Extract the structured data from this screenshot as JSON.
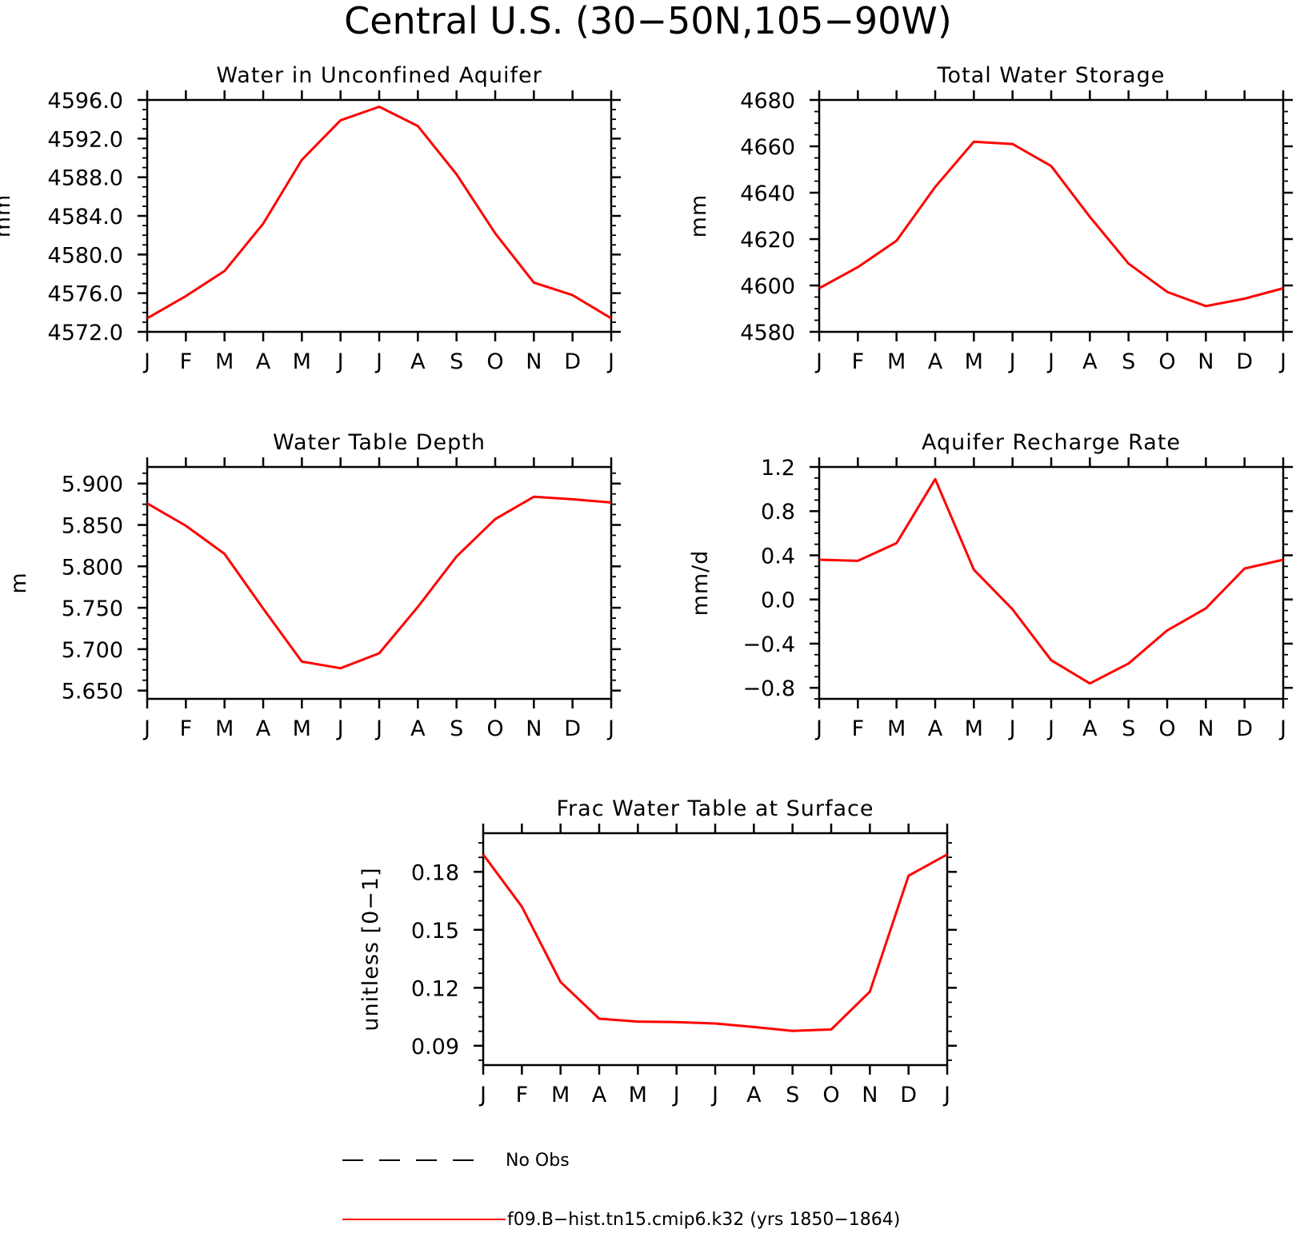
{
  "figure": {
    "title": "Central U.S. (30-50N,105-90W)"
  },
  "colors": {
    "model": "#ff0000",
    "obs": "#000000",
    "axes": "#000000"
  },
  "legend": {
    "entries": [
      {
        "label": "No Obs",
        "style": "dashed",
        "color": "#000000"
      },
      {
        "label": "f09.B-hist.tn15.cmip6.k32 (yrs 1850-1864)",
        "style": "solid",
        "color": "#ff0000"
      }
    ]
  },
  "chart_data": [
    {
      "type": "line",
      "title": "Water in Unconfined Aquifer",
      "ylabel": "mm",
      "x": [
        "J",
        "F",
        "M",
        "A",
        "M",
        "J",
        "J",
        "A",
        "S",
        "O",
        "N",
        "D",
        "J"
      ],
      "ylim": [
        4572,
        4596
      ],
      "yticks": [
        "4572.0",
        "4576.0",
        "4580.0",
        "4584.0",
        "4588.0",
        "4592.0",
        "4596.0"
      ],
      "series": [
        {
          "values": [
            4573.4,
            4575.7,
            4578.3,
            4583.2,
            4589.8,
            4593.9,
            4595.3,
            4593.3,
            4588.3,
            4582.2,
            4577.1,
            4575.8,
            4573.4
          ]
        }
      ]
    },
    {
      "type": "line",
      "title": "Total Water Storage",
      "ylabel": "mm",
      "x": [
        "J",
        "F",
        "M",
        "A",
        "M",
        "J",
        "J",
        "A",
        "S",
        "O",
        "N",
        "D",
        "J"
      ],
      "ylim": [
        4580,
        4680
      ],
      "yticks": [
        "4580",
        "4600",
        "4620",
        "4640",
        "4660",
        "4680"
      ],
      "series": [
        {
          "values": [
            4598.8,
            4607.9,
            4619.3,
            4642.5,
            4662.0,
            4661.0,
            4651.5,
            4629.6,
            4609.4,
            4597.2,
            4591.1,
            4594.3,
            4598.8
          ]
        }
      ]
    },
    {
      "type": "line",
      "title": "Water Table Depth",
      "ylabel": "m",
      "x": [
        "J",
        "F",
        "M",
        "A",
        "M",
        "J",
        "J",
        "A",
        "S",
        "O",
        "N",
        "D",
        "J"
      ],
      "ylim": [
        5.64,
        5.92
      ],
      "yticks": [
        "5.650",
        "5.700",
        "5.750",
        "5.800",
        "5.850",
        "5.900"
      ],
      "series": [
        {
          "values": [
            5.876,
            5.849,
            5.815,
            5.749,
            5.685,
            5.677,
            5.695,
            5.751,
            5.812,
            5.857,
            5.884,
            5.881,
            5.877
          ]
        }
      ]
    },
    {
      "type": "line",
      "title": "Aquifer Recharge Rate",
      "ylabel": "mm/d",
      "x": [
        "J",
        "F",
        "M",
        "A",
        "M",
        "J",
        "J",
        "A",
        "S",
        "O",
        "N",
        "D",
        "J"
      ],
      "ylim": [
        -0.9,
        1.2
      ],
      "yticks": [
        "-0.8",
        "-0.4",
        "0.0",
        "0.4",
        "0.8",
        "1.2"
      ],
      "series": [
        {
          "values": [
            0.36,
            0.35,
            0.51,
            1.09,
            0.27,
            -0.09,
            -0.55,
            -0.76,
            -0.58,
            -0.28,
            -0.08,
            0.28,
            0.36
          ]
        }
      ]
    },
    {
      "type": "line",
      "title": "Frac Water Table at Surface",
      "ylabel": "unitless [0-1]",
      "x": [
        "J",
        "F",
        "M",
        "A",
        "M",
        "J",
        "J",
        "A",
        "S",
        "O",
        "N",
        "D",
        "J"
      ],
      "ylim": [
        0.08,
        0.2
      ],
      "yticks": [
        "0.09",
        "0.12",
        "0.15",
        "0.18"
      ],
      "series": [
        {
          "values": [
            0.189,
            0.162,
            0.123,
            0.104,
            0.1025,
            0.1022,
            0.1015,
            0.0997,
            0.0977,
            0.0984,
            0.118,
            0.178,
            0.189
          ]
        }
      ]
    }
  ]
}
